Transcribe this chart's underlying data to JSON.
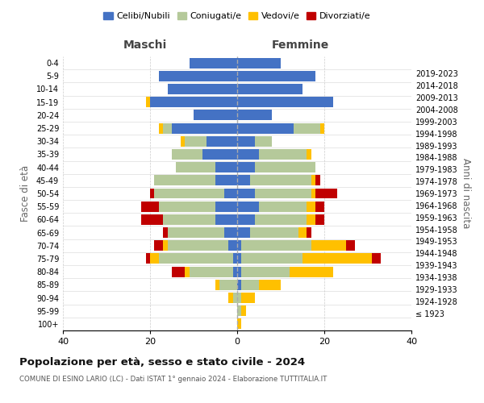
{
  "age_groups": [
    "100+",
    "95-99",
    "90-94",
    "85-89",
    "80-84",
    "75-79",
    "70-74",
    "65-69",
    "60-64",
    "55-59",
    "50-54",
    "45-49",
    "40-44",
    "35-39",
    "30-34",
    "25-29",
    "20-24",
    "15-19",
    "10-14",
    "5-9",
    "0-4"
  ],
  "birth_years": [
    "≤ 1923",
    "1924-1928",
    "1929-1933",
    "1934-1938",
    "1939-1943",
    "1944-1948",
    "1949-1953",
    "1954-1958",
    "1959-1963",
    "1964-1968",
    "1969-1973",
    "1974-1978",
    "1979-1983",
    "1984-1988",
    "1989-1993",
    "1994-1998",
    "1999-2003",
    "2004-2008",
    "2009-2013",
    "2014-2018",
    "2019-2023"
  ],
  "maschi": {
    "celibi": [
      0,
      0,
      0,
      0,
      1,
      1,
      2,
      3,
      5,
      5,
      3,
      5,
      5,
      8,
      7,
      15,
      10,
      20,
      16,
      18,
      11
    ],
    "coniugati": [
      0,
      0,
      1,
      4,
      10,
      17,
      14,
      13,
      12,
      13,
      16,
      14,
      9,
      7,
      5,
      2,
      0,
      0,
      0,
      0,
      0
    ],
    "vedovi": [
      0,
      0,
      1,
      1,
      1,
      2,
      1,
      0,
      0,
      0,
      0,
      0,
      0,
      0,
      1,
      1,
      0,
      1,
      0,
      0,
      0
    ],
    "divorziati": [
      0,
      0,
      0,
      0,
      3,
      1,
      2,
      1,
      5,
      4,
      1,
      0,
      0,
      0,
      0,
      0,
      0,
      0,
      0,
      0,
      0
    ]
  },
  "femmine": {
    "nubili": [
      0,
      0,
      0,
      1,
      1,
      1,
      1,
      3,
      4,
      5,
      4,
      3,
      4,
      5,
      4,
      13,
      8,
      22,
      15,
      18,
      10
    ],
    "coniugate": [
      0,
      1,
      1,
      4,
      11,
      14,
      16,
      11,
      12,
      11,
      13,
      14,
      14,
      11,
      4,
      6,
      0,
      0,
      0,
      0,
      0
    ],
    "vedove": [
      1,
      1,
      3,
      5,
      10,
      16,
      8,
      2,
      2,
      2,
      1,
      1,
      0,
      1,
      0,
      1,
      0,
      0,
      0,
      0,
      0
    ],
    "divorziate": [
      0,
      0,
      0,
      0,
      0,
      2,
      2,
      1,
      2,
      2,
      5,
      1,
      0,
      0,
      0,
      0,
      0,
      0,
      0,
      0,
      0
    ]
  },
  "colors": {
    "celibi_nubili": "#4472c4",
    "coniugati": "#b5c99a",
    "vedovi": "#ffc000",
    "divorziati": "#c00000"
  },
  "xlim": 40,
  "title": "Popolazione per età, sesso e stato civile - 2024",
  "subtitle": "COMUNE DI ESINO LARIO (LC) - Dati ISTAT 1° gennaio 2024 - Elaborazione TUTTITALIA.IT",
  "xlabel_left": "Maschi",
  "xlabel_right": "Femmine",
  "ylabel_left": "Fasce di età",
  "ylabel_right": "Anni di nascita",
  "legend_labels": [
    "Celibi/Nubili",
    "Coniugati/e",
    "Vedovi/e",
    "Divorziati/e"
  ],
  "background_color": "#ffffff"
}
